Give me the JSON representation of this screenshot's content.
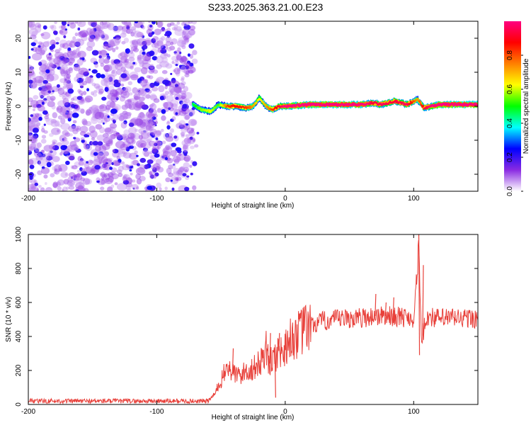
{
  "title": "S233.2025.363.21.00.E23",
  "chart_data": [
    {
      "type": "heatmap",
      "xlabel": "Height of straight line (km)",
      "ylabel": "Frequency (Hz)",
      "xlim": [
        -200,
        150
      ],
      "ylim": [
        -25,
        25
      ],
      "xticks": [
        -200,
        -100,
        0,
        100
      ],
      "xtick_labels": [
        "-200",
        "-100",
        "0",
        "100"
      ],
      "yticks": [
        -20,
        -10,
        0,
        10,
        20
      ],
      "ytick_labels": [
        "-20",
        "-10",
        "0",
        "10",
        "20"
      ],
      "noise_region_x": [
        -200,
        -68
      ],
      "noise_amplitude_range": [
        0.05,
        0.2
      ],
      "ridge_start_x": -72,
      "ridge": [
        {
          "x": -72,
          "f": 0.5,
          "amp": 0.35
        },
        {
          "x": -65,
          "f": -1.0,
          "amp": 0.45
        },
        {
          "x": -58,
          "f": -1.5,
          "amp": 0.5
        },
        {
          "x": -52,
          "f": 0.5,
          "amp": 0.4
        },
        {
          "x": -45,
          "f": 0.0,
          "amp": 0.7
        },
        {
          "x": -38,
          "f": 0.0,
          "amp": 0.75
        },
        {
          "x": -30,
          "f": -0.5,
          "amp": 0.7
        },
        {
          "x": -25,
          "f": 0.0,
          "amp": 0.6
        },
        {
          "x": -20,
          "f": 2.5,
          "amp": 0.5
        },
        {
          "x": -15,
          "f": 0.0,
          "amp": 0.6
        },
        {
          "x": -10,
          "f": -1.0,
          "amp": 0.7
        },
        {
          "x": -5,
          "f": 0.0,
          "amp": 0.8
        },
        {
          "x": 0,
          "f": 0.0,
          "amp": 0.9
        },
        {
          "x": 20,
          "f": 0.5,
          "amp": 0.95
        },
        {
          "x": 40,
          "f": 0.5,
          "amp": 0.98
        },
        {
          "x": 60,
          "f": 0.5,
          "amp": 0.95
        },
        {
          "x": 68,
          "f": 1.0,
          "amp": 0.8
        },
        {
          "x": 75,
          "f": 0.5,
          "amp": 0.85
        },
        {
          "x": 85,
          "f": 1.5,
          "amp": 0.8
        },
        {
          "x": 95,
          "f": 0.5,
          "amp": 0.85
        },
        {
          "x": 103,
          "f": 2.0,
          "amp": 0.6
        },
        {
          "x": 108,
          "f": -0.5,
          "amp": 0.8
        },
        {
          "x": 120,
          "f": 0.5,
          "amp": 0.95
        },
        {
          "x": 150,
          "f": 0.5,
          "amp": 0.98
        }
      ],
      "colorbar": {
        "label": "Normalized spectral amplitude",
        "range": [
          0.0,
          1.0
        ],
        "ticks": [
          0.0,
          0.2,
          0.4,
          0.6,
          0.8
        ],
        "tick_labels": [
          "0.0",
          "0.2",
          "0.4",
          "0.6",
          "0.8"
        ],
        "colors": [
          "#ffffff",
          "#8a2be2",
          "#0000ff",
          "#00ffff",
          "#00ff00",
          "#ffff00",
          "#ff8000",
          "#ff0000",
          "#ff0080"
        ]
      }
    },
    {
      "type": "line",
      "xlabel": "Height of straight line (km)",
      "ylabel": "SNR (10 * v/v)",
      "xlim": [
        -200,
        150
      ],
      "ylim": [
        0,
        1000
      ],
      "xticks": [
        -200,
        -100,
        0,
        100
      ],
      "xtick_labels": [
        "-200",
        "-100",
        "0",
        "100"
      ],
      "yticks": [
        0,
        200,
        400,
        600,
        800,
        1000
      ],
      "ytick_labels": [
        "0",
        "200",
        "400",
        "600",
        "800",
        "1000"
      ],
      "color": "#e8403a",
      "series": [
        {
          "name": "SNR",
          "x": [
            -200,
            -60,
            -55,
            -50,
            -45,
            -40,
            -35,
            -30,
            -25,
            -20,
            -15,
            -12,
            -8,
            -5,
            -2,
            0,
            5,
            10,
            15,
            20,
            25,
            30,
            40,
            50,
            60,
            70,
            80,
            90,
            100,
            103,
            104,
            105,
            106,
            108,
            110,
            120,
            130,
            150
          ],
          "y": [
            20,
            20,
            60,
            140,
            220,
            180,
            170,
            200,
            210,
            240,
            330,
            240,
            280,
            320,
            300,
            350,
            390,
            410,
            440,
            460,
            480,
            490,
            500,
            505,
            510,
            520,
            520,
            515,
            510,
            800,
            1000,
            600,
            360,
            450,
            520,
            505,
            510,
            505
          ],
          "spikes": [
            {
              "x": -41,
              "y": 330
            },
            {
              "x": -12,
              "y": 420
            },
            {
              "x": -8,
              "y": 40
            },
            {
              "x": -5,
              "y": 420
            },
            {
              "x": 70,
              "y": 650
            },
            {
              "x": 78,
              "y": 600
            },
            {
              "x": 84,
              "y": 630
            },
            {
              "x": 104,
              "y": 1000
            },
            {
              "x": 104,
              "y": 290
            },
            {
              "x": 107,
              "y": 820
            }
          ]
        }
      ]
    }
  ]
}
